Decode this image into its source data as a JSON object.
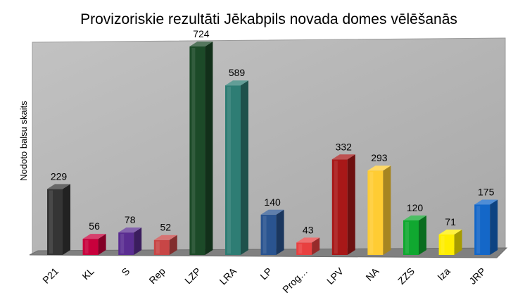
{
  "chart_data": {
    "type": "bar",
    "title": "Provizoriskie rezultāti Jēkabpils novada domes vēlēšanās",
    "ylabel": "Nodoto balsu skaits",
    "xlabel": "",
    "categories": [
      "P21",
      "KL",
      "S",
      "Rep",
      "LZP",
      "LRA",
      "LP",
      "Prog…",
      "LPV",
      "NA",
      "ZZS",
      "Iza",
      "JRP"
    ],
    "values": [
      229,
      56,
      78,
      52,
      724,
      589,
      140,
      43,
      332,
      293,
      120,
      71,
      175
    ],
    "colors": [
      "#353535",
      "#c8003c",
      "#5a2d91",
      "#c84646",
      "#1c4a28",
      "#2e7d74",
      "#2a5490",
      "#e84040",
      "#a81818",
      "#ffcc33",
      "#10a830",
      "#ffee00",
      "#1467c8"
    ],
    "ylim": [
      0,
      724
    ],
    "grid": false,
    "legend": "none",
    "style": "3d-bars",
    "wall_color": "#b4b4b4",
    "floor_color": "#808080"
  }
}
